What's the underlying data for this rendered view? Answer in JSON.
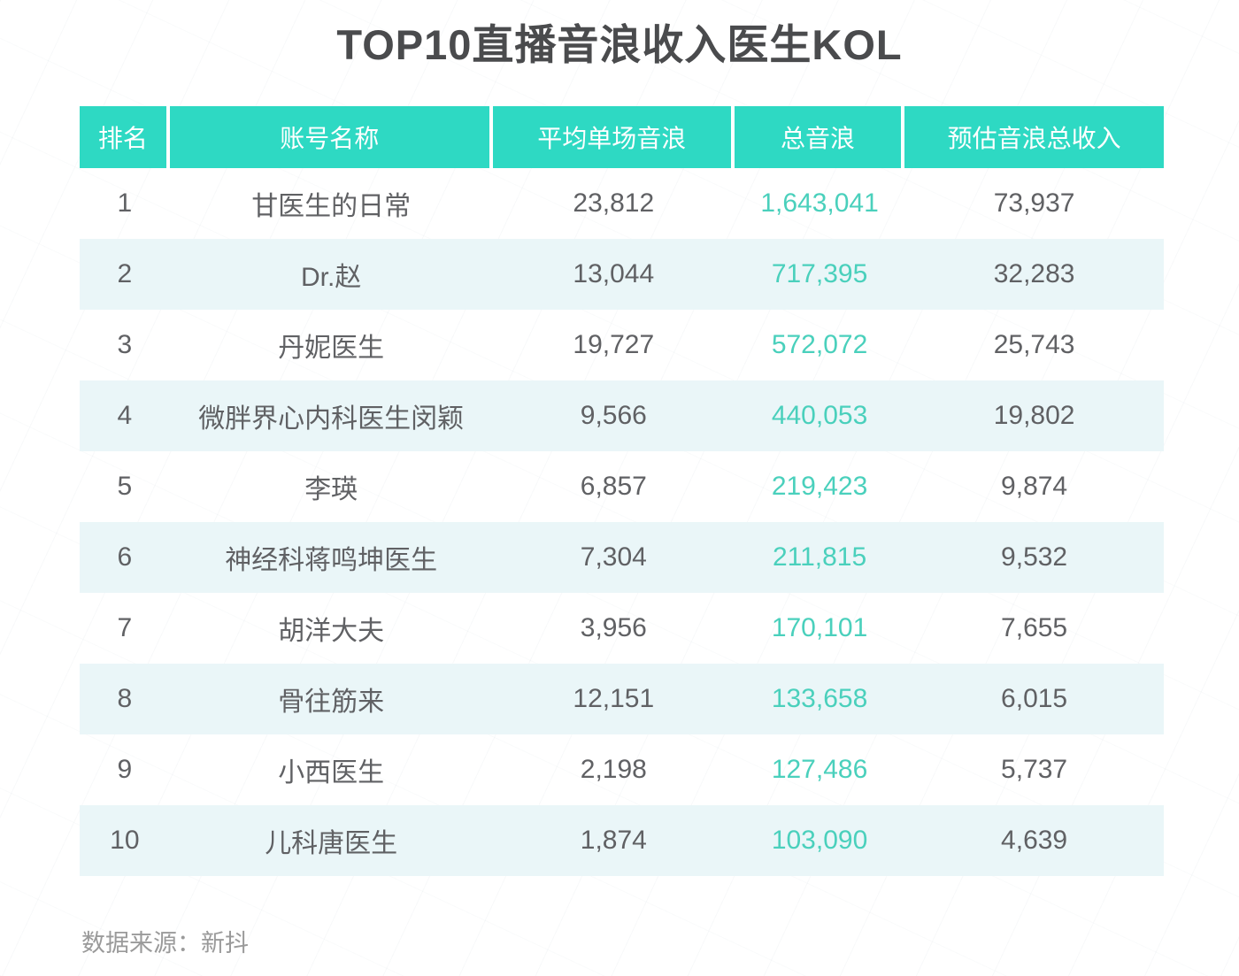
{
  "page": {
    "title": "TOP10直播音浪收入医生KOL",
    "source_label": "数据来源：新抖"
  },
  "colors": {
    "header_bg": "#2ed9c3",
    "header_text": "#ffffff",
    "total_column_text": "#4ad0bc",
    "body_text": "#606164",
    "even_row_bg": "#eaf6f8",
    "title_text": "#4a4b4d",
    "source_text": "#9a9a9a"
  },
  "table": {
    "columns": [
      {
        "key": "rank",
        "label": "排名"
      },
      {
        "key": "name",
        "label": "账号名称"
      },
      {
        "key": "avg",
        "label": "平均单场音浪"
      },
      {
        "key": "total",
        "label": "总音浪"
      },
      {
        "key": "income",
        "label": "预估音浪总收入"
      }
    ],
    "rows": [
      {
        "rank": "1",
        "name": "甘医生的日常",
        "avg": "23,812",
        "total": "1,643,041",
        "income": "73,937"
      },
      {
        "rank": "2",
        "name": "Dr.赵",
        "avg": "13,044",
        "total": "717,395",
        "income": "32,283"
      },
      {
        "rank": "3",
        "name": "丹妮医生",
        "avg": "19,727",
        "total": "572,072",
        "income": "25,743"
      },
      {
        "rank": "4",
        "name": "微胖界心内科医生闵颖",
        "avg": "9,566",
        "total": "440,053",
        "income": "19,802"
      },
      {
        "rank": "5",
        "name": "李瑛",
        "avg": "6,857",
        "total": "219,423",
        "income": "9,874"
      },
      {
        "rank": "6",
        "name": "神经科蒋鸣坤医生",
        "avg": "7,304",
        "total": "211,815",
        "income": "9,532"
      },
      {
        "rank": "7",
        "name": "胡洋大夫",
        "avg": "3,956",
        "total": "170,101",
        "income": "7,655"
      },
      {
        "rank": "8",
        "name": "骨往筋来",
        "avg": "12,151",
        "total": "133,658",
        "income": "6,015"
      },
      {
        "rank": "9",
        "name": "小西医生",
        "avg": "2,198",
        "total": "127,486",
        "income": "5,737"
      },
      {
        "rank": "10",
        "name": "儿科唐医生",
        "avg": "1,874",
        "total": "103,090",
        "income": "4,639"
      }
    ]
  },
  "chart_data": {
    "type": "table",
    "title": "TOP10直播音浪收入医生KOL",
    "columns": [
      "排名",
      "账号名称",
      "平均单场音浪",
      "总音浪",
      "预估音浪总收入"
    ],
    "rows": [
      [
        1,
        "甘医生的日常",
        23812,
        1643041,
        73937
      ],
      [
        2,
        "Dr.赵",
        13044,
        717395,
        32283
      ],
      [
        3,
        "丹妮医生",
        19727,
        572072,
        25743
      ],
      [
        4,
        "微胖界心内科医生闵颖",
        9566,
        440053,
        19802
      ],
      [
        5,
        "李瑛",
        6857,
        219423,
        9874
      ],
      [
        6,
        "神经科蒋鸣坤医生",
        7304,
        211815,
        9532
      ],
      [
        7,
        "胡洋大夫",
        3956,
        170101,
        7655
      ],
      [
        8,
        "骨往筋来",
        12151,
        133658,
        6015
      ],
      [
        9,
        "小西医生",
        2198,
        127486,
        5737
      ],
      [
        10,
        "儿科唐医生",
        1874,
        103090,
        4639
      ]
    ],
    "source": "数据来源：新抖",
    "layout_hints": {
      "highlighted_column": "总音浪",
      "highlight_color": "#4ad0bc",
      "striped_rows": true
    }
  }
}
